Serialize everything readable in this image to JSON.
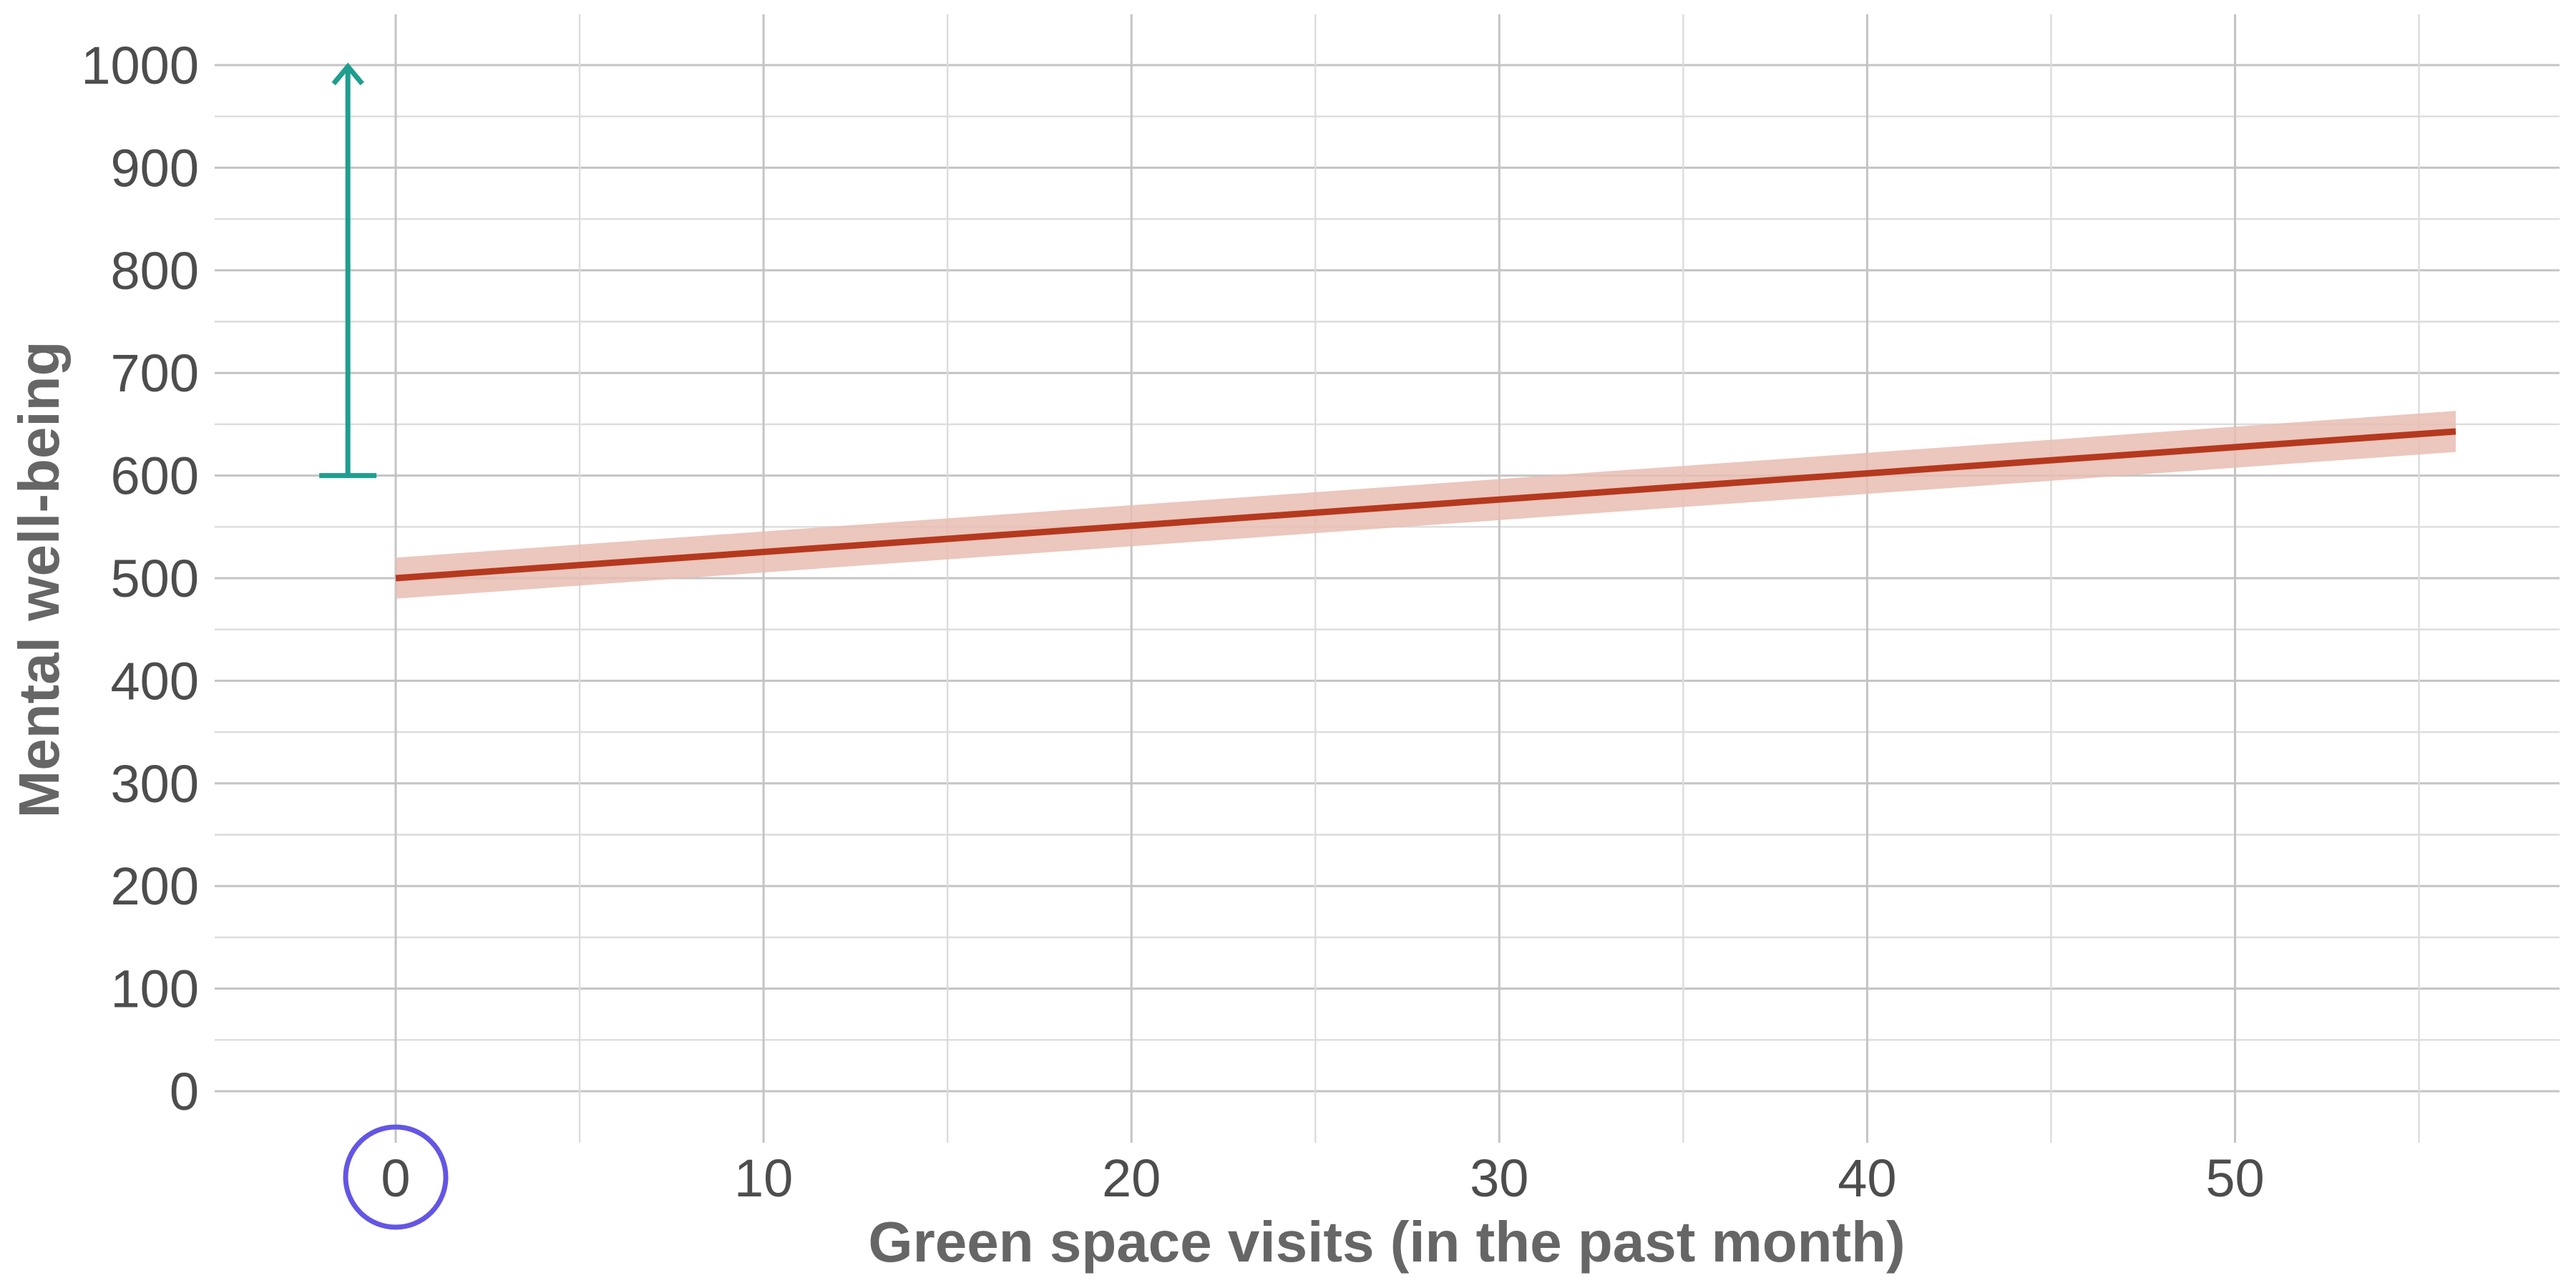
{
  "chart_data": {
    "type": "line",
    "xlabel": "Green space visits (in the past month)",
    "ylabel": "Mental well-being",
    "xlim": [
      -5,
      59
    ],
    "ylim": [
      0,
      1000
    ],
    "x_ticks": [
      "0",
      "10",
      "20",
      "30",
      "40",
      "50"
    ],
    "y_ticks": [
      "0",
      "100",
      "200",
      "300",
      "400",
      "500",
      "600",
      "700",
      "800",
      "900",
      "1000"
    ],
    "series": [
      {
        "x": [
          0,
          56
        ],
        "y": [
          500,
          643
        ],
        "ci_lower": [
          480,
          623
        ],
        "ci_upper": [
          520,
          663
        ],
        "color": "#b5391e",
        "band_color": "#e8bdb3"
      }
    ],
    "annotations": [
      {
        "type": "arrow",
        "x": -1.3,
        "y_from": 600,
        "y_to": 1000,
        "color": "#1f9e8e"
      },
      {
        "type": "circle-highlight",
        "target_tick": "0",
        "color": "#6356e5"
      }
    ],
    "grid": true
  }
}
